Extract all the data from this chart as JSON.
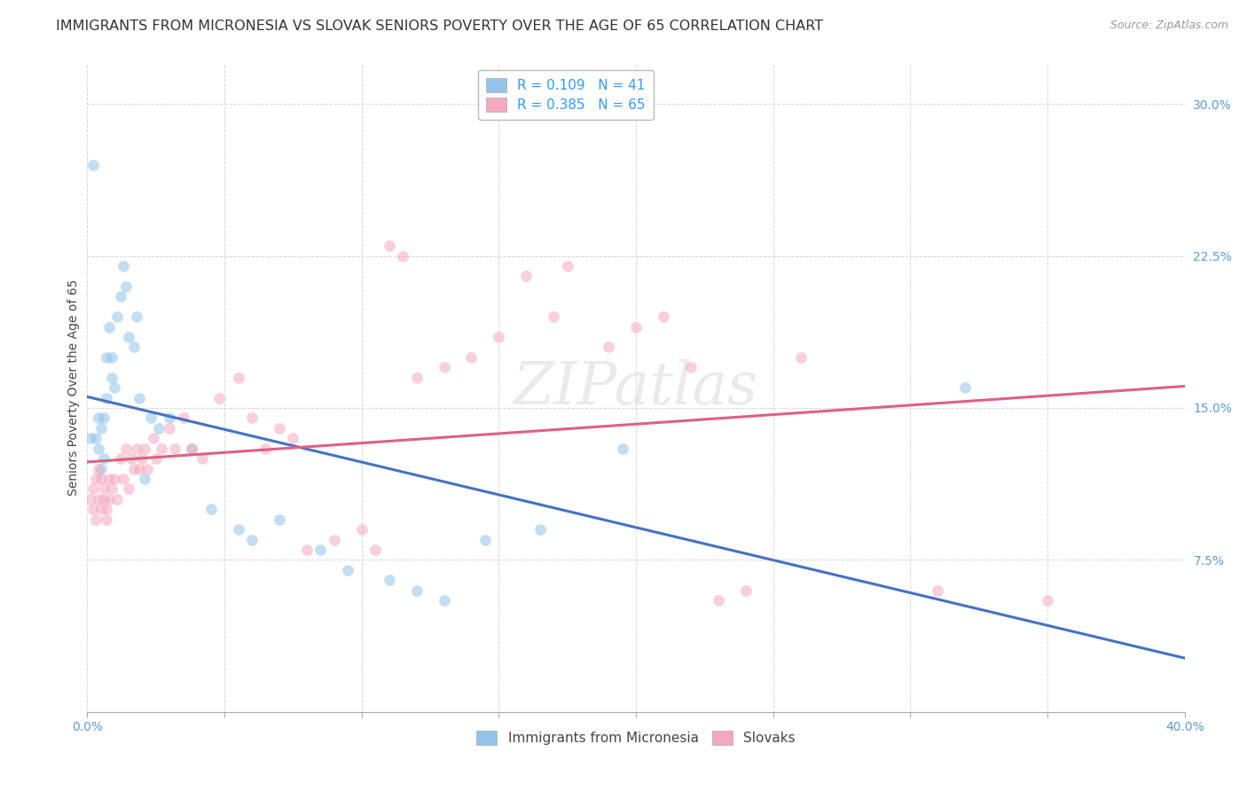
{
  "title": "IMMIGRANTS FROM MICRONESIA VS SLOVAK SENIORS POVERTY OVER THE AGE OF 65 CORRELATION CHART",
  "source": "Source: ZipAtlas.com",
  "ylabel_label": "Seniors Poverty Over the Age of 65",
  "xlim": [
    0.0,
    0.4
  ],
  "ylim": [
    0.0,
    0.32
  ],
  "xticks": [
    0.0,
    0.05,
    0.1,
    0.15,
    0.2,
    0.25,
    0.3,
    0.35,
    0.4
  ],
  "yticks": [
    0.0,
    0.075,
    0.15,
    0.225,
    0.3
  ],
  "ytick_labels": [
    "",
    "7.5%",
    "15.0%",
    "22.5%",
    "30.0%"
  ],
  "grid_color": "#cccccc",
  "background_color": "#ffffff",
  "blue_color": "#91c4e8",
  "pink_color": "#f4a8be",
  "blue_line_color": "#4472c4",
  "pink_line_color": "#e06080",
  "R_blue": 0.109,
  "N_blue": 41,
  "R_pink": 0.385,
  "N_pink": 65,
  "legend_label_blue": "Immigrants from Micronesia",
  "legend_label_pink": "Slovaks",
  "micronesia_x": [
    0.001,
    0.002,
    0.003,
    0.004,
    0.004,
    0.005,
    0.005,
    0.006,
    0.006,
    0.007,
    0.007,
    0.008,
    0.009,
    0.009,
    0.01,
    0.011,
    0.012,
    0.013,
    0.014,
    0.015,
    0.017,
    0.018,
    0.019,
    0.021,
    0.023,
    0.026,
    0.03,
    0.038,
    0.045,
    0.055,
    0.06,
    0.07,
    0.085,
    0.095,
    0.11,
    0.12,
    0.13,
    0.145,
    0.165,
    0.195,
    0.32
  ],
  "micronesia_y": [
    0.135,
    0.27,
    0.135,
    0.145,
    0.13,
    0.14,
    0.12,
    0.145,
    0.125,
    0.155,
    0.175,
    0.19,
    0.165,
    0.175,
    0.16,
    0.195,
    0.205,
    0.22,
    0.21,
    0.185,
    0.18,
    0.195,
    0.155,
    0.115,
    0.145,
    0.14,
    0.145,
    0.13,
    0.1,
    0.09,
    0.085,
    0.095,
    0.08,
    0.07,
    0.065,
    0.06,
    0.055,
    0.085,
    0.09,
    0.13,
    0.16
  ],
  "slovak_x": [
    0.001,
    0.002,
    0.002,
    0.003,
    0.003,
    0.004,
    0.004,
    0.005,
    0.005,
    0.006,
    0.006,
    0.007,
    0.007,
    0.008,
    0.008,
    0.009,
    0.01,
    0.011,
    0.012,
    0.013,
    0.014,
    0.015,
    0.016,
    0.017,
    0.018,
    0.019,
    0.02,
    0.021,
    0.022,
    0.024,
    0.025,
    0.027,
    0.03,
    0.032,
    0.035,
    0.038,
    0.042,
    0.048,
    0.055,
    0.06,
    0.065,
    0.07,
    0.075,
    0.08,
    0.09,
    0.1,
    0.105,
    0.11,
    0.115,
    0.12,
    0.13,
    0.14,
    0.15,
    0.16,
    0.17,
    0.175,
    0.19,
    0.2,
    0.21,
    0.22,
    0.23,
    0.24,
    0.26,
    0.31,
    0.35
  ],
  "slovak_y": [
    0.105,
    0.11,
    0.1,
    0.115,
    0.095,
    0.12,
    0.105,
    0.115,
    0.1,
    0.11,
    0.105,
    0.095,
    0.1,
    0.115,
    0.105,
    0.11,
    0.115,
    0.105,
    0.125,
    0.115,
    0.13,
    0.11,
    0.125,
    0.12,
    0.13,
    0.12,
    0.125,
    0.13,
    0.12,
    0.135,
    0.125,
    0.13,
    0.14,
    0.13,
    0.145,
    0.13,
    0.125,
    0.155,
    0.165,
    0.145,
    0.13,
    0.14,
    0.135,
    0.08,
    0.085,
    0.09,
    0.08,
    0.23,
    0.225,
    0.165,
    0.17,
    0.175,
    0.185,
    0.215,
    0.195,
    0.22,
    0.18,
    0.19,
    0.195,
    0.17,
    0.055,
    0.06,
    0.175,
    0.06,
    0.055
  ],
  "marker_size": 85,
  "alpha": 0.55,
  "title_fontsize": 11.5,
  "axis_label_fontsize": 10,
  "tick_fontsize": 10,
  "legend_fontsize": 11
}
